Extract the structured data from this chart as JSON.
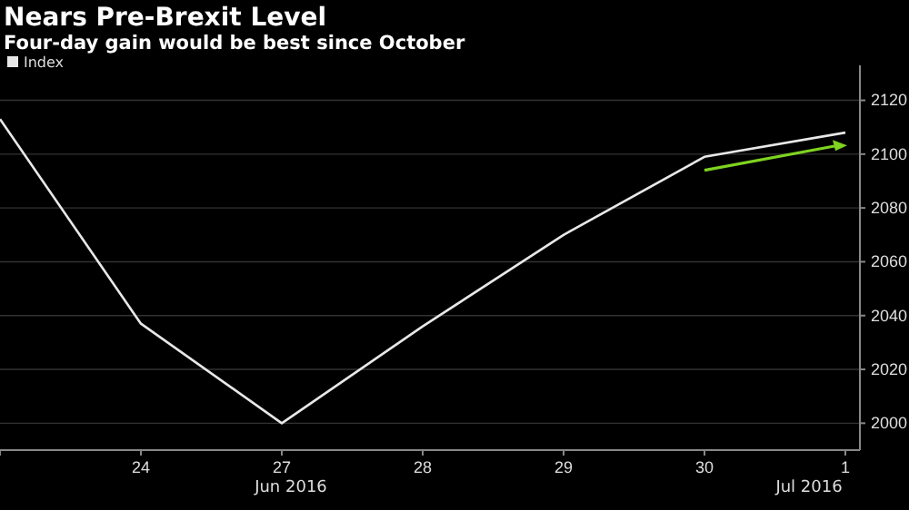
{
  "chart_data": {
    "type": "line",
    "title": "Nears Pre-Brexit Level",
    "subtitle": "Four-day gain would be best since October",
    "categories": [
      null,
      "24",
      "27",
      "28",
      "29",
      "30",
      "1"
    ],
    "series": [
      {
        "name": "Index",
        "color": "#e8e8e8",
        "values": [
          2113,
          2037,
          2000,
          2036,
          2070,
          2099,
          2108
        ]
      }
    ],
    "ylim": [
      1990,
      2133
    ],
    "yticks": [
      2000,
      2020,
      2040,
      2060,
      2080,
      2100,
      2120
    ],
    "annotations": [
      "Jun 2016",
      "Jul 2016"
    ],
    "grid": "y",
    "legend": "top left",
    "marker": "none",
    "line_style": "solid"
  }
}
